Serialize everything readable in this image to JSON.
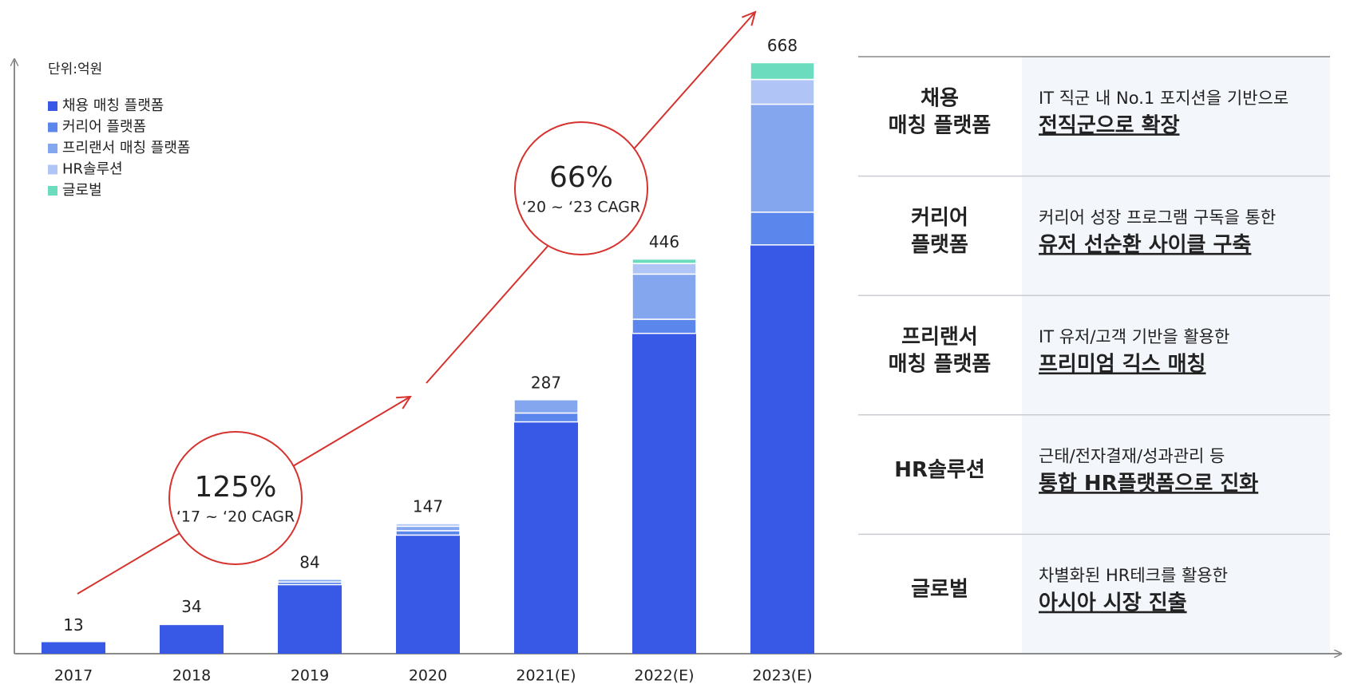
{
  "chart_data": {
    "type": "bar",
    "stacked": true,
    "unit_label": "단위:억원",
    "categories": [
      "2017",
      "2018",
      "2019",
      "2020",
      "2021(E)",
      "2022(E)",
      "2023(E)"
    ],
    "series": [
      {
        "name": "채용 매칭 플랫폼",
        "color": "#3859e6",
        "values": [
          13,
          33,
          78,
          134,
          262,
          362,
          462
        ]
      },
      {
        "name": "커리어 플랫폼",
        "color": "#5b86ec",
        "values": [
          0,
          1,
          3,
          5,
          10,
          16,
          37
        ]
      },
      {
        "name": "프리랜서 매칭 플랫폼",
        "color": "#84a6ef",
        "values": [
          0,
          0,
          3,
          5,
          15,
          51,
          122
        ]
      },
      {
        "name": "HR솔루션",
        "color": "#b0c4f5",
        "values": [
          0,
          0,
          0,
          3,
          0,
          12,
          28
        ]
      },
      {
        "name": "글로벌",
        "color": "#6cdcbf",
        "values": [
          0,
          0,
          0,
          0,
          0,
          5,
          19
        ]
      }
    ],
    "totals": [
      13,
      34,
      84,
      147,
      287,
      446,
      668
    ],
    "ylim": [
      0,
      700
    ],
    "annotations": [
      {
        "text": "125%",
        "subtext": "‘17 ~ ‘20 CAGR"
      },
      {
        "text": "66%",
        "subtext": "‘20 ~ ‘23 CAGR"
      }
    ]
  },
  "table": {
    "rows": [
      {
        "label": [
          "채용",
          "매칭 플랫폼"
        ],
        "color": "#2f55db",
        "text": "IT 직군 내 No.1 포지션을 기반으로",
        "highlight": "전직군으로 확장"
      },
      {
        "label": [
          "커리어",
          "플랫폼"
        ],
        "color": "#4a78e6",
        "text": "커리어 성장 프로그램 구독을 통한",
        "highlight": "유저 선순환 사이클 구축"
      },
      {
        "label": [
          "프리랜서",
          "매칭 플랫폼"
        ],
        "color": "#7fa0ee",
        "text": "IT 유저/고객 기반을 활용한",
        "highlight": "프리미엄 긱스 매칭"
      },
      {
        "label": [
          "HR솔루션"
        ],
        "color": "#b0c4f5",
        "text": "근태/전자결재/성과관리 등",
        "highlight": "통합 HR플랫폼으로 진화"
      },
      {
        "label": [
          "글로벌"
        ],
        "color": "#6cdcbf",
        "text": "차별화된 HR테크를 활용한",
        "highlight": "아시아 시장 진출"
      }
    ]
  }
}
